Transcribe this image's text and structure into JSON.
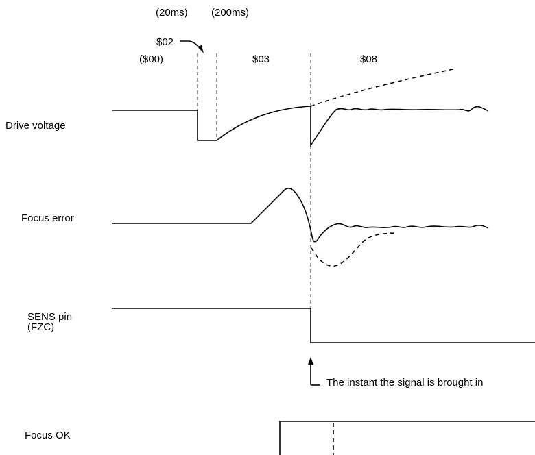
{
  "phases": {
    "t1": "(20ms)",
    "t2": "(200ms)",
    "s02": "$02",
    "s00": "($00)",
    "s03": "$03",
    "s08": "$08"
  },
  "signals": {
    "drive_voltage": "Drive voltage",
    "focus_error": "Focus error",
    "sens_pin_line1": "SENS pin",
    "sens_pin_line2": "(FZC)",
    "focus_ok": "Focus OK"
  },
  "annotation": "The instant the signal is brought in"
}
